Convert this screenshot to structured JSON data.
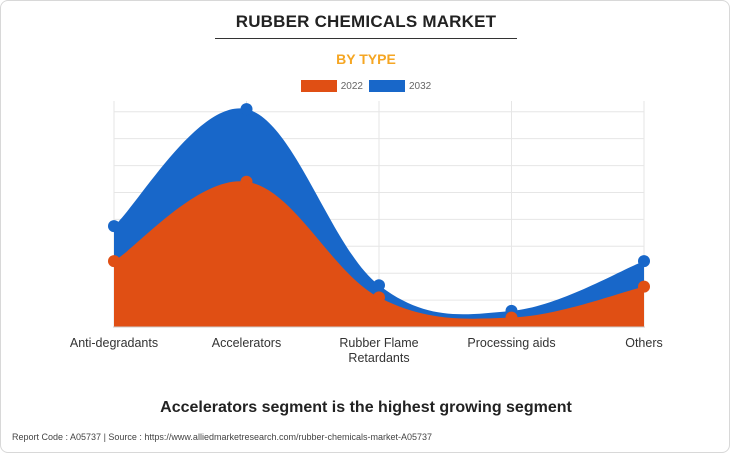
{
  "header": {
    "title": "RUBBER CHEMICALS MARKET",
    "subtitle": "BY TYPE"
  },
  "caption": "Accelerators segment is the highest growing segment",
  "footer": {
    "text": "Report Code : A05737  |  Source : https://www.alliedmarketresearch.com/rubber-chemicals-market-A05737"
  },
  "colors": {
    "series_2022": "#e04f14",
    "series_2032": "#1867c9",
    "grid": "#e6e6e6",
    "subtitle": "#f5a623"
  },
  "chart_data": {
    "type": "area",
    "categories": [
      "Anti-degradants",
      "Accelerators",
      "Rubber Flame Retardants",
      "Processing aids",
      "Others"
    ],
    "category_lines": [
      [
        "Anti-degradants"
      ],
      [
        "Accelerators"
      ],
      [
        "Rubber Flame",
        "Retardants"
      ],
      [
        "Processing aids"
      ],
      [
        "Others"
      ]
    ],
    "series": [
      {
        "name": "2022",
        "values": [
          2.45,
          5.4,
          1.1,
          0.35,
          1.5
        ]
      },
      {
        "name": "2032",
        "values": [
          3.75,
          8.1,
          1.55,
          0.6,
          2.45
        ]
      }
    ],
    "ylim": [
      0,
      8.4
    ],
    "grid_step": 1,
    "legend": "top-center",
    "xlabel": "",
    "ylabel": ""
  }
}
